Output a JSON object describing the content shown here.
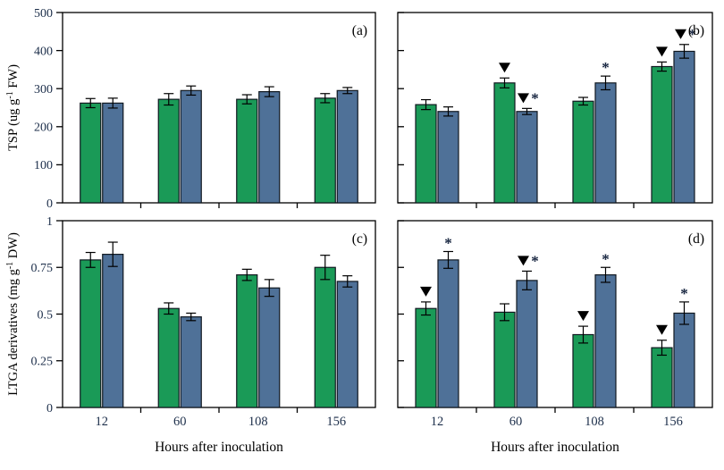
{
  "figure": {
    "background": "#ffffff",
    "axis_color": "#000000",
    "bar_border_color": "#101820",
    "tick_label_color": "#1c2e4a",
    "annotation_triangle_color": "#000000",
    "annotation_asterisk_color": "#16243f",
    "annotation_glyphs": {
      "triangle": "▼",
      "asterisk": "*"
    },
    "series_colors": {
      "green": "#1a9a57",
      "blue": "#4f7198"
    }
  },
  "chart_data": [
    {
      "panel_label": "(a)",
      "type": "bar",
      "categories": [
        "12",
        "60",
        "108",
        "156"
      ],
      "series": [
        {
          "name": "series-green",
          "color": "#1a9a57",
          "values": [
            262,
            272,
            272,
            275
          ],
          "errors": [
            12,
            15,
            12,
            12
          ],
          "annotations": [
            "",
            "",
            "",
            ""
          ]
        },
        {
          "name": "series-blue",
          "color": "#4f7198",
          "values": [
            262,
            295,
            292,
            295
          ],
          "errors": [
            13,
            12,
            13,
            8
          ],
          "annotations": [
            "",
            "",
            "",
            ""
          ]
        }
      ],
      "ylabel_parts": [
        {
          "t": "TSP (ug g"
        },
        {
          "t": "-1",
          "sup": true
        },
        {
          "t": " FW)"
        }
      ],
      "xlabel": "",
      "ylim": [
        0,
        500
      ],
      "yticks": [
        0,
        100,
        200,
        300,
        400,
        500
      ],
      "ytick_labels": [
        "0",
        "100",
        "200",
        "300",
        "400",
        "500"
      ],
      "show_ytick_labels": true,
      "show_xtick_labels": false,
      "ytick_side": "out",
      "grid": false,
      "legend": "none"
    },
    {
      "panel_label": "(b)",
      "type": "bar",
      "categories": [
        "12",
        "60",
        "108",
        "156"
      ],
      "series": [
        {
          "name": "series-green",
          "color": "#1a9a57",
          "values": [
            258,
            315,
            267,
            358
          ],
          "errors": [
            13,
            13,
            10,
            12
          ],
          "annotations": [
            "",
            "tri",
            "",
            "tri"
          ]
        },
        {
          "name": "series-blue",
          "color": "#4f7198",
          "values": [
            240,
            240,
            315,
            398
          ],
          "errors": [
            12,
            8,
            18,
            18
          ],
          "annotations": [
            "",
            "tri+ast",
            "ast",
            "tri+ast"
          ]
        }
      ],
      "ylabel_parts": [],
      "xlabel": "",
      "ylim": [
        0,
        500
      ],
      "yticks": [
        0,
        100,
        200,
        300,
        400,
        500
      ],
      "ytick_labels": [],
      "show_ytick_labels": false,
      "show_xtick_labels": false,
      "ytick_side": "in",
      "grid": false,
      "legend": "none"
    },
    {
      "panel_label": "(c)",
      "type": "bar",
      "categories": [
        "12",
        "60",
        "108",
        "156"
      ],
      "series": [
        {
          "name": "series-green",
          "color": "#1a9a57",
          "values": [
            0.79,
            0.53,
            0.71,
            0.75
          ],
          "errors": [
            0.04,
            0.03,
            0.03,
            0.065
          ],
          "annotations": [
            "",
            "",
            "",
            ""
          ]
        },
        {
          "name": "series-blue",
          "color": "#4f7198",
          "values": [
            0.82,
            0.485,
            0.64,
            0.675
          ],
          "errors": [
            0.065,
            0.02,
            0.045,
            0.03
          ],
          "annotations": [
            "",
            "",
            "",
            ""
          ]
        }
      ],
      "ylabel_parts": [
        {
          "t": "LTGA derivatives (mg g"
        },
        {
          "t": "-1",
          "sup": true
        },
        {
          "t": " DW)"
        }
      ],
      "xlabel": "Hours after inoculation",
      "ylim": [
        0,
        1
      ],
      "yticks": [
        0,
        0.25,
        0.5,
        0.75,
        1
      ],
      "ytick_labels": [
        "0",
        "0.25",
        "0.5",
        "0.75",
        "1"
      ],
      "show_ytick_labels": true,
      "show_xtick_labels": true,
      "ytick_side": "out",
      "grid": false,
      "legend": "none"
    },
    {
      "panel_label": "(d)",
      "type": "bar",
      "categories": [
        "12",
        "60",
        "108",
        "156"
      ],
      "series": [
        {
          "name": "series-green",
          "color": "#1a9a57",
          "values": [
            0.53,
            0.51,
            0.39,
            0.32
          ],
          "errors": [
            0.035,
            0.045,
            0.045,
            0.04
          ],
          "annotations": [
            "tri",
            "",
            "tri",
            "tri"
          ]
        },
        {
          "name": "series-blue",
          "color": "#4f7198",
          "values": [
            0.79,
            0.68,
            0.71,
            0.505
          ],
          "errors": [
            0.045,
            0.05,
            0.04,
            0.06
          ],
          "annotations": [
            "ast",
            "tri+ast",
            "ast",
            "ast"
          ]
        }
      ],
      "ylabel_parts": [],
      "xlabel": "Hours after inoculation",
      "ylim": [
        0,
        1
      ],
      "yticks": [
        0,
        0.25,
        0.5,
        0.75,
        1
      ],
      "ytick_labels": [],
      "show_ytick_labels": false,
      "show_xtick_labels": true,
      "ytick_side": "in",
      "grid": false,
      "legend": "none"
    }
  ]
}
